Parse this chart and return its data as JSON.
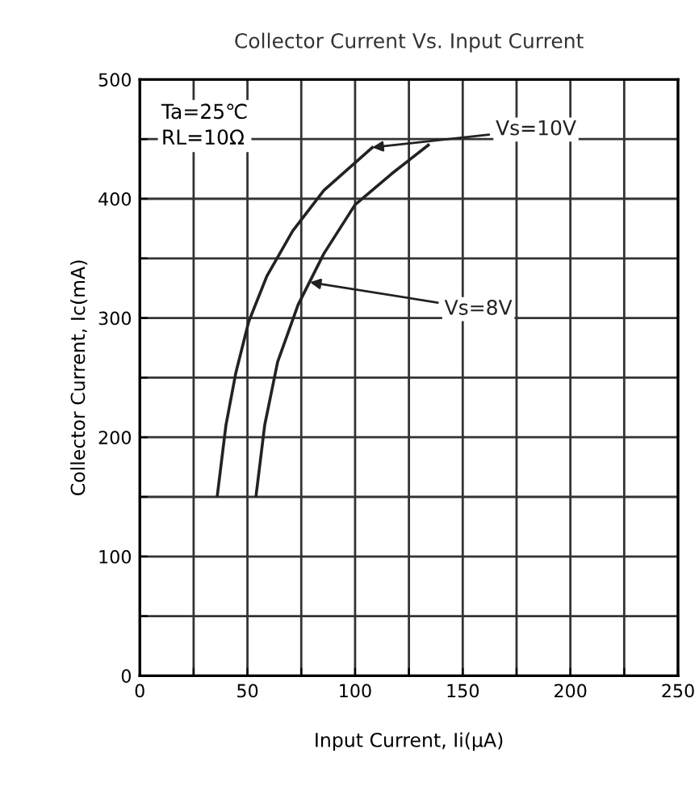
{
  "chart_data": {
    "type": "line",
    "title": "Collector Current Vs. Input Current",
    "xlabel": "Input Current, Ii(μA)",
    "ylabel": "Collector Current, Ic(mA)",
    "xlim": [
      0,
      250
    ],
    "ylim": [
      0,
      500
    ],
    "xticks": [
      0,
      {
        "value": 25,
        "label": null
      },
      50,
      {
        "value": 75,
        "label": null
      },
      100,
      {
        "value": 125,
        "label": null
      },
      150,
      {
        "value": 175,
        "label": null
      },
      200,
      {
        "value": 225,
        "label": null
      },
      250
    ],
    "yticks": [
      0,
      {
        "value": 50,
        "label": null
      },
      100,
      {
        "value": 150,
        "label": null
      },
      200,
      {
        "value": 250,
        "label": null
      },
      300,
      {
        "value": 350,
        "label": null
      },
      400,
      {
        "value": 450,
        "label": null
      },
      500
    ],
    "grid": true,
    "marker": "none",
    "line_style": "solid",
    "series": [
      {
        "color": "#222222",
        "x": [
          36,
          40,
          44.6,
          50.6,
          59,
          71,
          85.5,
          108
        ],
        "values": [
          151,
          210,
          254,
          297,
          335,
          373,
          407,
          443
        ]
      },
      {
        "color": "#222222",
        "x": [
          54,
          58,
          64,
          73.5,
          85.5,
          100,
          117,
          134
        ],
        "values": [
          151,
          210,
          263,
          311,
          354,
          395,
          421,
          445
        ]
      }
    ],
    "annotations": [
      "Ta=25℃\nRL=10Ω",
      {
        "text": "Vs=10V",
        "x": 108,
        "y": 443
      },
      {
        "text": "Vs=8V",
        "x": 79,
        "y": 330
      }
    ]
  }
}
